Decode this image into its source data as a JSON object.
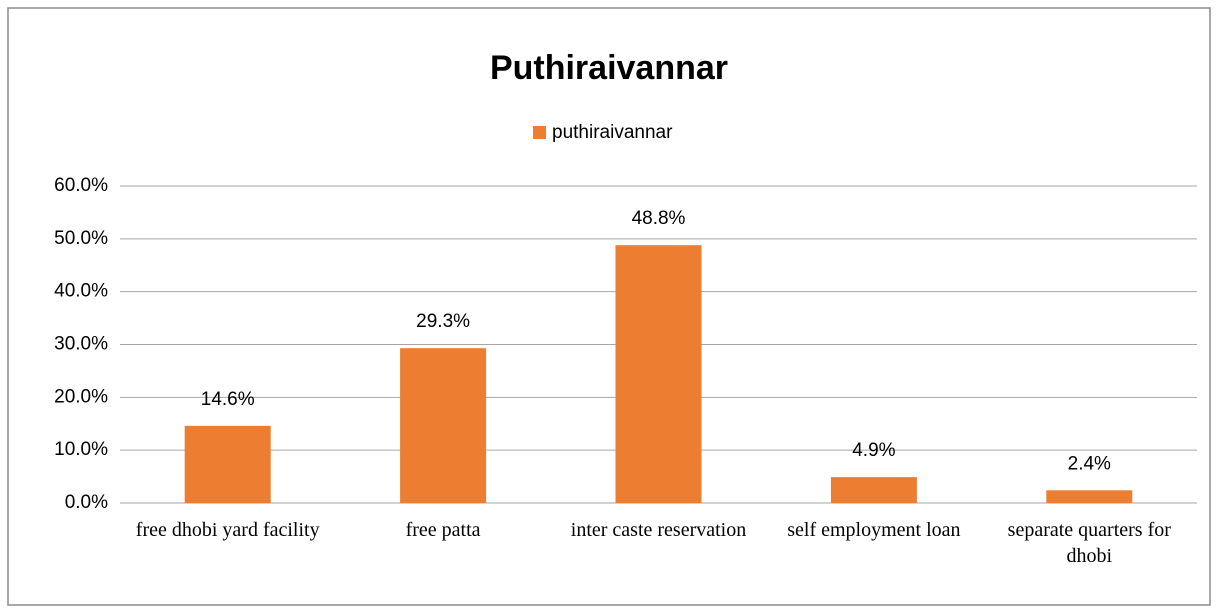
{
  "chart_data": {
    "type": "bar",
    "title": "Puthiraivannar",
    "categories": [
      "free dhobi yard facility",
      "free patta",
      "inter caste reservation",
      "self employment loan",
      "separate quarters for dhobi"
    ],
    "series": [
      {
        "name": "puthiraivannar",
        "color": "#ed7d31",
        "values": [
          14.6,
          29.3,
          48.8,
          4.9,
          2.4
        ],
        "value_labels": [
          "14.6%",
          "29.3%",
          "48.8%",
          "4.9%",
          "2.4%"
        ]
      }
    ],
    "ylim": [
      0,
      60
    ],
    "yticks": [
      {
        "value": 0,
        "label": "0.0%"
      },
      {
        "value": 10,
        "label": "10.0%"
      },
      {
        "value": 20,
        "label": "20.0%"
      },
      {
        "value": 30,
        "label": "30.0%"
      },
      {
        "value": 40,
        "label": "40.0%"
      },
      {
        "value": 50,
        "label": "50.0%"
      },
      {
        "value": 60,
        "label": "60.0%"
      }
    ],
    "grid": true,
    "legend": "top"
  }
}
